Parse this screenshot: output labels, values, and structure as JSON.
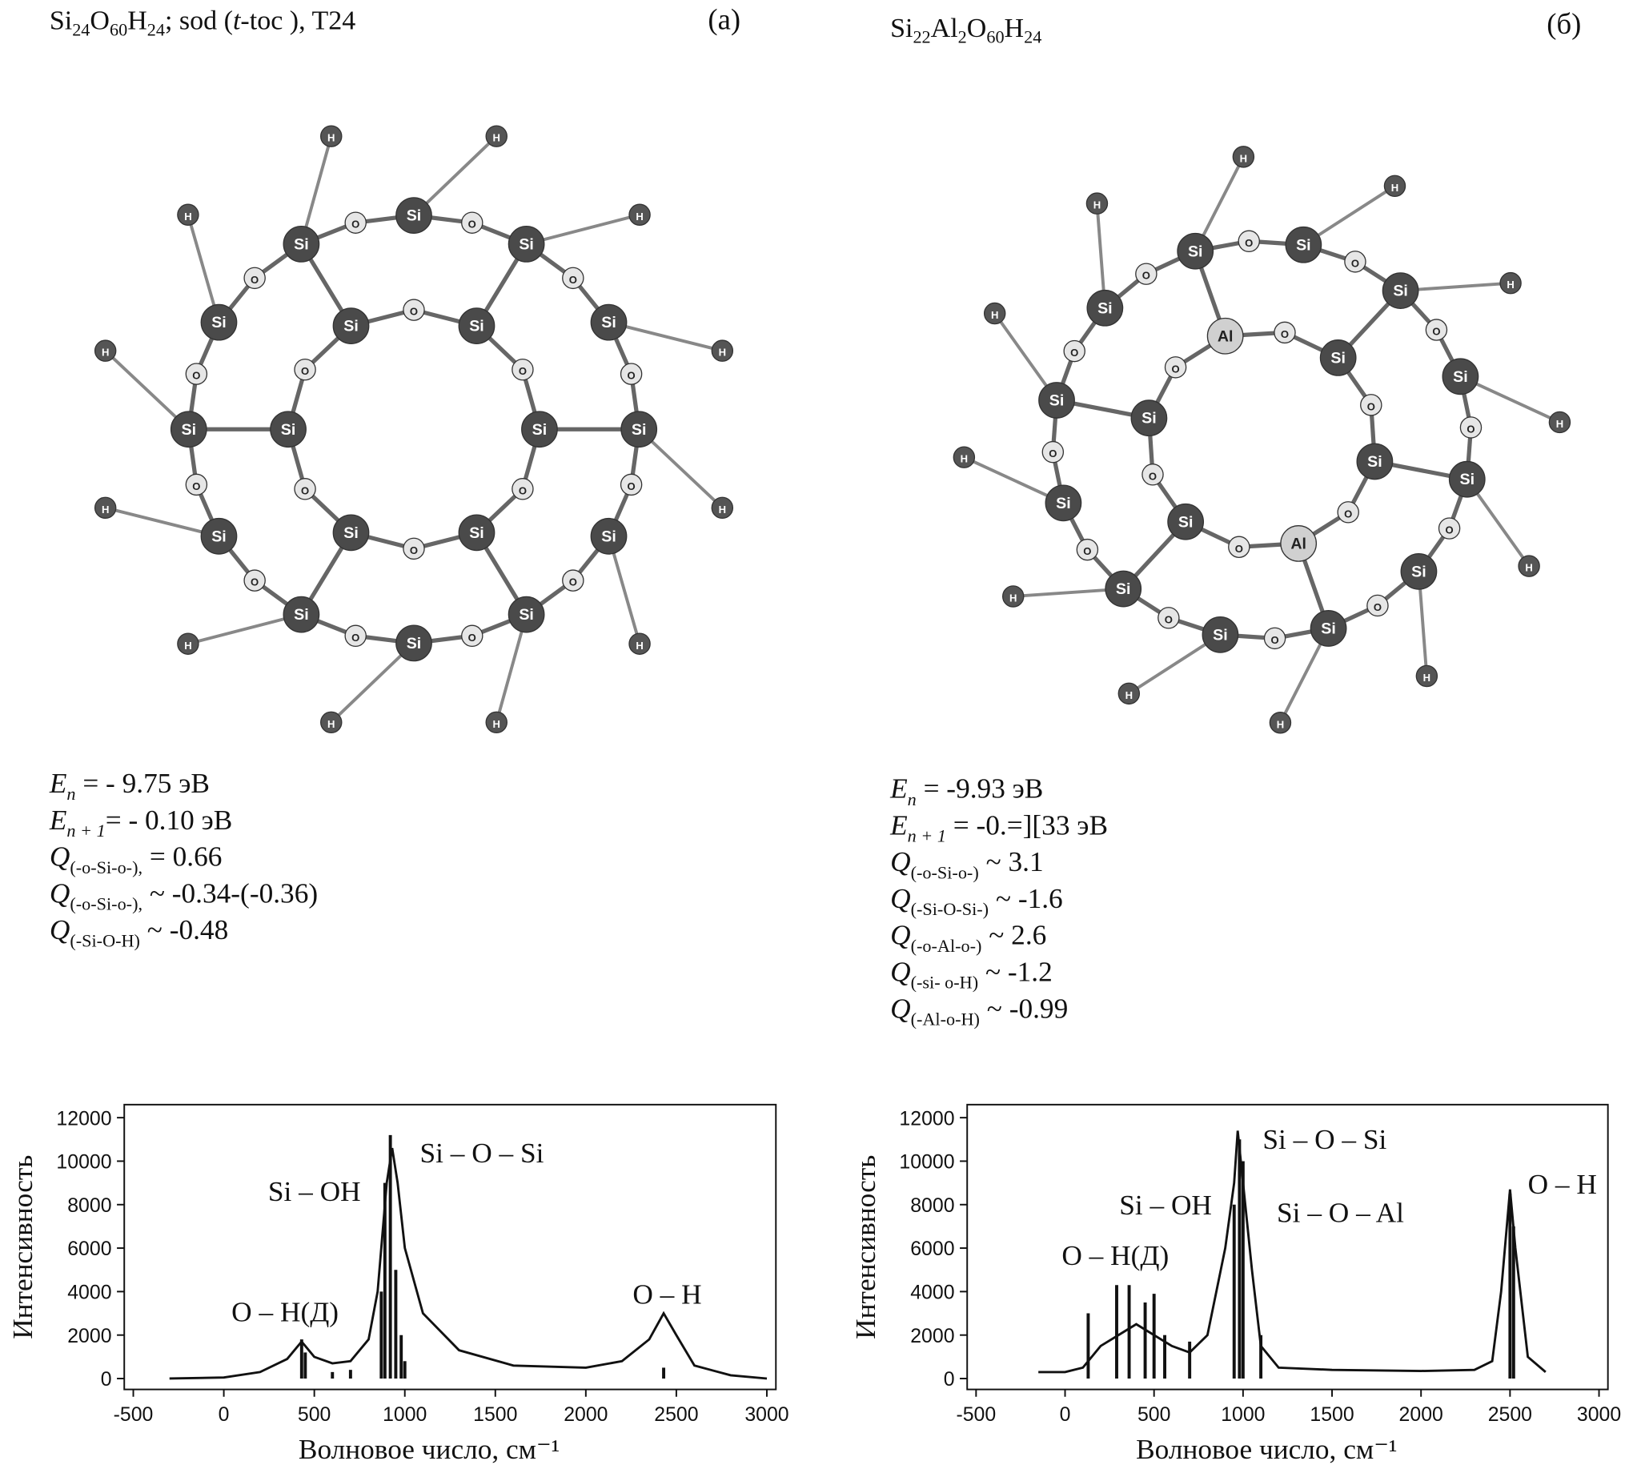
{
  "panels": [
    {
      "label": "(a)",
      "formula": [
        {
          "text": "Si"
        },
        {
          "sub": "24"
        },
        {
          "text": "O"
        },
        {
          "sub": "60"
        },
        {
          "text": "H"
        },
        {
          "sub": "24"
        },
        {
          "text": "; sod ("
        },
        {
          "italic": "t"
        },
        {
          "text": "-toc ), T24"
        }
      ],
      "properties": [
        {
          "symbol": "E",
          "sub": "n",
          "text": " = - 9.75 эВ"
        },
        {
          "symbol": "E",
          "sub": "n + 1",
          "text": "= - 0.10 эВ"
        },
        {
          "symbol": "Q",
          "sub": "(-o-Si-o-),",
          "text": " = 0.66"
        },
        {
          "symbol": "Q",
          "sub": "(-o-Si-o-),",
          "text": " ~ -0.34-(-0.36)"
        },
        {
          "symbol": "Q",
          "sub": "(-Si-O-H)",
          "text": " ~ -0.48"
        }
      ],
      "atoms": [
        "Si",
        "O",
        "Si",
        "O",
        "Si",
        "O",
        "Si",
        "O",
        "Si",
        "O",
        "Si",
        "O",
        "Si",
        "O",
        "Si",
        "O",
        "Si",
        "O",
        "Si",
        "O",
        "Si",
        "O",
        "Si",
        "O",
        "Si",
        "O",
        "Si",
        "O",
        "Si",
        "O",
        "Si",
        "O",
        "Si",
        "O",
        "Si",
        "O",
        "H",
        "H",
        "H",
        "H",
        "H",
        "H",
        "H",
        "H",
        "H",
        "H",
        "H",
        "H"
      ]
    },
    {
      "label": "(б)",
      "formula": [
        {
          "text": "Si"
        },
        {
          "sub": "22"
        },
        {
          "text": "Al"
        },
        {
          "sub": "2"
        },
        {
          "text": "O"
        },
        {
          "sub": "60"
        },
        {
          "text": "H"
        },
        {
          "sub": "24"
        }
      ],
      "properties": [
        {
          "symbol": "E",
          "sub": "n",
          "text": " = -9.93 эВ"
        },
        {
          "symbol": "E",
          "sub": "n + 1",
          "text": " = -0.=][33 эВ"
        },
        {
          "symbol": "Q",
          "sub": "(-o-Si-o-)",
          "text": " ~ 3.1"
        },
        {
          "symbol": "Q",
          "sub": "(-Si-O-Si-)",
          "text": " ~ -1.6"
        },
        {
          "symbol": "Q",
          "sub": "(-o-Al-o-)",
          "text": "  ~ 2.6"
        },
        {
          "symbol": "Q",
          "sub": "(-si- o-H)",
          "text": " ~ -1.2"
        },
        {
          "symbol": "Q",
          "sub": "(-Al-o-H)",
          "text": " ~ -0.99"
        }
      ],
      "atoms": [
        "Si",
        "O",
        "Al",
        "O",
        "Si",
        "O",
        "Si",
        "O",
        "Al",
        "O",
        "Si",
        "O",
        "Si",
        "O",
        "Si",
        "O",
        "Si",
        "O",
        "Si",
        "O",
        "Si",
        "O",
        "Si",
        "O",
        "Si",
        "O",
        "Si",
        "O",
        "Si",
        "O",
        "Si",
        "O",
        "Si",
        "O",
        "Si",
        "O",
        "H",
        "H",
        "H",
        "H",
        "H",
        "H",
        "H",
        "H",
        "H",
        "H",
        "H",
        "H"
      ]
    }
  ],
  "chart_data": [
    {
      "type": "line",
      "x_label": "Волновое число, см⁻¹",
      "y_label": "Интенсивность",
      "xlim": [
        -550,
        3050
      ],
      "ylim": [
        -500,
        12600
      ],
      "xticks": [
        -500,
        0,
        500,
        1000,
        1500,
        2000,
        2500,
        3000
      ],
      "yticks": [
        0,
        2000,
        4000,
        6000,
        8000,
        10000,
        12000
      ],
      "color": "#111111",
      "x": [
        -300,
        0,
        200,
        350,
        430,
        500,
        600,
        700,
        800,
        850,
        900,
        930,
        960,
        1000,
        1100,
        1300,
        1600,
        2000,
        2200,
        2350,
        2430,
        2500,
        2600,
        2800,
        3000
      ],
      "values": [
        0,
        50,
        300,
        900,
        1700,
        1000,
        700,
        800,
        1800,
        4000,
        9000,
        10600,
        9000,
        6000,
        3000,
        1300,
        600,
        500,
        800,
        1800,
        3000,
        2000,
        600,
        150,
        0
      ],
      "sticks": {
        "x": [
          430,
          450,
          600,
          700,
          870,
          890,
          920,
          950,
          980,
          1000,
          2430
        ],
        "values": [
          1800,
          1200,
          300,
          400,
          4000,
          9000,
          11200,
          5000,
          2000,
          800,
          500
        ]
      },
      "annotations": [
        "O – H(Д)",
        "Si – OH",
        "Si – O – Si",
        "O – H"
      ]
    },
    {
      "type": "line",
      "x_label": "Волновое число, см⁻¹",
      "y_label": "Интенсивность",
      "xlim": [
        -550,
        3050
      ],
      "ylim": [
        -500,
        12600
      ],
      "xticks": [
        -500,
        0,
        500,
        1000,
        1500,
        2000,
        2500,
        3000
      ],
      "yticks": [
        0,
        2000,
        4000,
        6000,
        8000,
        10000,
        12000
      ],
      "color": "#111111",
      "x": [
        -150,
        0,
        100,
        200,
        300,
        400,
        500,
        600,
        700,
        800,
        900,
        950,
        970,
        1000,
        1050,
        1100,
        1200,
        1500,
        2000,
        2300,
        2400,
        2450,
        2500,
        2530,
        2600,
        2700
      ],
      "values": [
        300,
        300,
        500,
        1500,
        2000,
        2500,
        2000,
        1500,
        1200,
        2000,
        6000,
        9000,
        11400,
        9000,
        5000,
        1500,
        500,
        400,
        350,
        400,
        800,
        4000,
        8700,
        6000,
        1000,
        300
      ],
      "sticks": {
        "x": [
          130,
          290,
          360,
          450,
          500,
          560,
          700,
          950,
          980,
          1000,
          1100,
          2500,
          2520
        ],
        "values": [
          3000,
          4300,
          4300,
          3500,
          3900,
          2000,
          1700,
          8000,
          11000,
          10000,
          2000,
          8500,
          7000
        ]
      },
      "annotations": [
        "O – H(Д)",
        "Si – OH",
        "Si – O – Si",
        "Si – O – Al",
        "O – H"
      ]
    }
  ]
}
